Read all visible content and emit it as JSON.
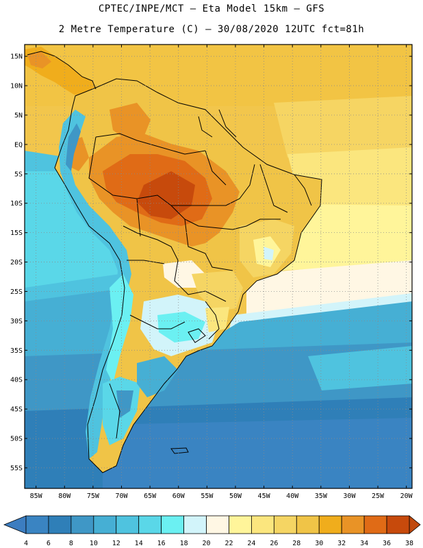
{
  "header": {
    "line1": "CPTEC/INPE/MCT –  Eta Model 15km – GFS",
    "line2": "2 Metre Temperature (C) – 30/08/2020 12UTC fct=81h"
  },
  "map": {
    "lat_labels": [
      "15N",
      "10N",
      "5N",
      "EQ",
      "5S",
      "10S",
      "15S",
      "20S",
      "25S",
      "30S",
      "35S",
      "40S",
      "45S",
      "50S",
      "55S"
    ],
    "lon_labels": [
      "85W",
      "80W",
      "75W",
      "70W",
      "65W",
      "60W",
      "55W",
      "50W",
      "45W",
      "40W",
      "35W",
      "30W",
      "25W",
      "20W"
    ],
    "lat_values": [
      15,
      10,
      5,
      0,
      -5,
      -10,
      -15,
      -20,
      -25,
      -30,
      -35,
      -40,
      -45,
      -50,
      -55
    ],
    "lon_values": [
      -85,
      -80,
      -75,
      -70,
      -65,
      -60,
      -55,
      -50,
      -45,
      -40,
      -35,
      -30,
      -25,
      -20
    ],
    "region_bounds": {
      "lon_min": -87,
      "lon_max": -19,
      "lat_min": -58.5,
      "lat_max": 17
    }
  },
  "colorbar": {
    "labels": [
      "4",
      "6",
      "8",
      "10",
      "12",
      "14",
      "16",
      "18",
      "20",
      "22",
      "24",
      "26",
      "28",
      "30",
      "32",
      "34",
      "36",
      "38"
    ],
    "colors": [
      "#3a84c2",
      "#2f7fb8",
      "#3f97c6",
      "#46afd4",
      "#4fc3df",
      "#5ad7e8",
      "#6bf0f2",
      "#d2f4fa",
      "#fff7e4",
      "#fff59a",
      "#fbe67e",
      "#f5d563",
      "#f0c447",
      "#f0ad1c",
      "#e99326",
      "#e06b16",
      "#c74a0c"
    ],
    "low_color": "#3c7dc0",
    "high_color": "#c0490e"
  }
}
